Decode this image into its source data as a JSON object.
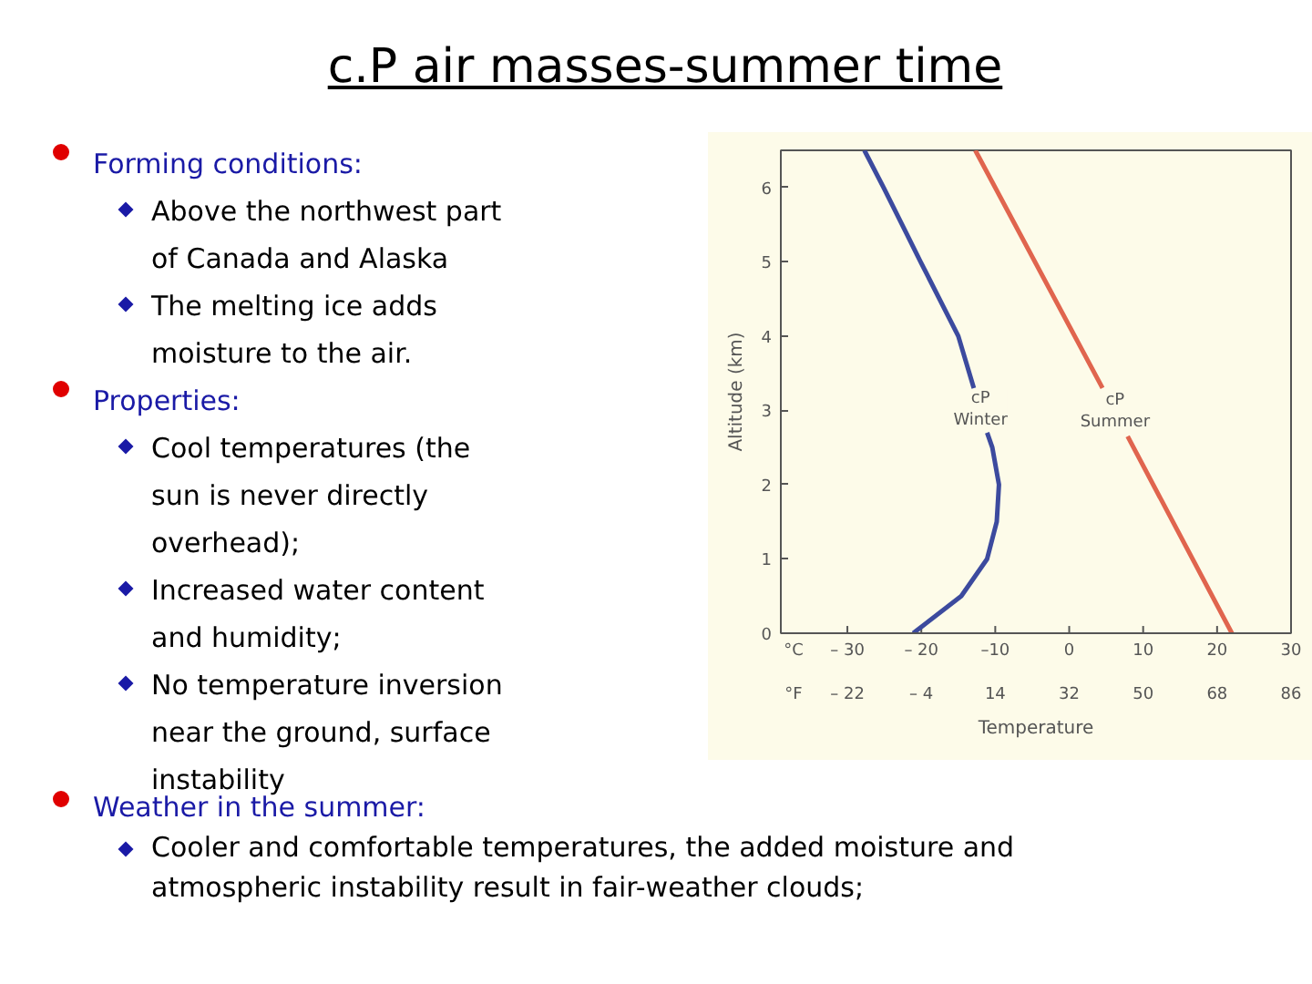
{
  "chart_data": {
    "type": "line",
    "title": "c.P air masses-summer time",
    "xlabel": "Temperature",
    "ylabel": "Altitude (km)",
    "series": [
      {
        "name": "cP Winter",
        "color": "#3c4a9e",
        "x": [
          -21.1,
          -14.6,
          -11.1,
          -9.8,
          -9.5,
          -10.4,
          -11.1,
          null,
          -12.9,
          -15,
          -20.1,
          -25.1,
          -27.7
        ],
        "values": [
          0,
          0.5,
          1,
          1.5,
          2,
          2.5,
          2.7,
          null,
          3.3,
          4,
          5,
          6,
          6.5
        ]
      },
      {
        "name": "cP Summer",
        "color": "#e0654e",
        "x": [
          22,
          7.9,
          null,
          4.5,
          -12.7
        ],
        "values": [
          0,
          2.65,
          null,
          3.3,
          6.5
        ]
      }
    ],
    "xlim": [
      -39,
      30
    ],
    "ylim": [
      0,
      6.5
    ],
    "xticks": [
      {
        "value": -30,
        "label": "– 30"
      },
      {
        "value": -20,
        "label": "– 20"
      },
      {
        "value": -10,
        "label": "–10"
      },
      0,
      10,
      20,
      30
    ],
    "x2lim": [
      -38.2,
      86
    ],
    "x2ticks": [
      {
        "value": -22,
        "label": "– 22"
      },
      {
        "value": -4,
        "label": "– 4"
      },
      14,
      32,
      50,
      68,
      86
    ],
    "yticks": [
      0,
      1,
      2,
      3,
      4,
      5,
      6
    ],
    "grid": false,
    "annotations": [
      "Forming conditions:",
      "Above the northwest part of Canada and Alaska",
      "The melting ice adds moisture to the air.",
      "Properties:",
      "Cool temperatures (the sun is never directly overhead);",
      "Increased water content and humidity;",
      "No temperature inversion near the ground, surface instability",
      "Weather in the summer:",
      "Cooler and comfortable temperatures, the added moisture and atmospheric instability result in fair-weather clouds;",
      "°C",
      "°F"
    ]
  }
}
